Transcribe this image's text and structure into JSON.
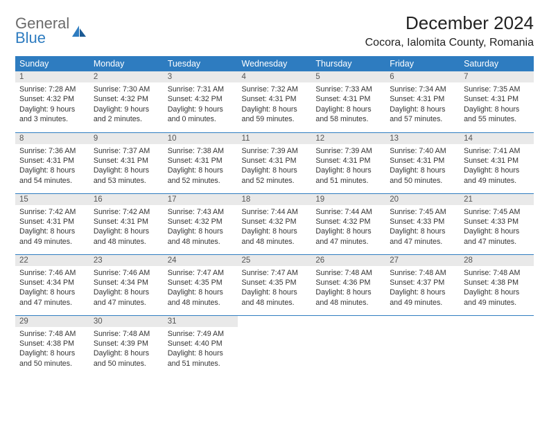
{
  "logo": {
    "word1": "General",
    "word2": "Blue"
  },
  "title": "December 2024",
  "location": "Cocora, Ialomita County, Romania",
  "colors": {
    "header_bg": "#2e7cc0",
    "header_text": "#ffffff",
    "daynum_bg": "#e9e9e9",
    "row_divider": "#2e7cc0",
    "logo_gray": "#6b6b6b",
    "logo_blue": "#2e7cc0"
  },
  "weekdays": [
    "Sunday",
    "Monday",
    "Tuesday",
    "Wednesday",
    "Thursday",
    "Friday",
    "Saturday"
  ],
  "weeks": [
    [
      {
        "day": "1",
        "sunrise": "Sunrise: 7:28 AM",
        "sunset": "Sunset: 4:32 PM",
        "daylight": "Daylight: 9 hours and 3 minutes."
      },
      {
        "day": "2",
        "sunrise": "Sunrise: 7:30 AM",
        "sunset": "Sunset: 4:32 PM",
        "daylight": "Daylight: 9 hours and 2 minutes."
      },
      {
        "day": "3",
        "sunrise": "Sunrise: 7:31 AM",
        "sunset": "Sunset: 4:32 PM",
        "daylight": "Daylight: 9 hours and 0 minutes."
      },
      {
        "day": "4",
        "sunrise": "Sunrise: 7:32 AM",
        "sunset": "Sunset: 4:31 PM",
        "daylight": "Daylight: 8 hours and 59 minutes."
      },
      {
        "day": "5",
        "sunrise": "Sunrise: 7:33 AM",
        "sunset": "Sunset: 4:31 PM",
        "daylight": "Daylight: 8 hours and 58 minutes."
      },
      {
        "day": "6",
        "sunrise": "Sunrise: 7:34 AM",
        "sunset": "Sunset: 4:31 PM",
        "daylight": "Daylight: 8 hours and 57 minutes."
      },
      {
        "day": "7",
        "sunrise": "Sunrise: 7:35 AM",
        "sunset": "Sunset: 4:31 PM",
        "daylight": "Daylight: 8 hours and 55 minutes."
      }
    ],
    [
      {
        "day": "8",
        "sunrise": "Sunrise: 7:36 AM",
        "sunset": "Sunset: 4:31 PM",
        "daylight": "Daylight: 8 hours and 54 minutes."
      },
      {
        "day": "9",
        "sunrise": "Sunrise: 7:37 AM",
        "sunset": "Sunset: 4:31 PM",
        "daylight": "Daylight: 8 hours and 53 minutes."
      },
      {
        "day": "10",
        "sunrise": "Sunrise: 7:38 AM",
        "sunset": "Sunset: 4:31 PM",
        "daylight": "Daylight: 8 hours and 52 minutes."
      },
      {
        "day": "11",
        "sunrise": "Sunrise: 7:39 AM",
        "sunset": "Sunset: 4:31 PM",
        "daylight": "Daylight: 8 hours and 52 minutes."
      },
      {
        "day": "12",
        "sunrise": "Sunrise: 7:39 AM",
        "sunset": "Sunset: 4:31 PM",
        "daylight": "Daylight: 8 hours and 51 minutes."
      },
      {
        "day": "13",
        "sunrise": "Sunrise: 7:40 AM",
        "sunset": "Sunset: 4:31 PM",
        "daylight": "Daylight: 8 hours and 50 minutes."
      },
      {
        "day": "14",
        "sunrise": "Sunrise: 7:41 AM",
        "sunset": "Sunset: 4:31 PM",
        "daylight": "Daylight: 8 hours and 49 minutes."
      }
    ],
    [
      {
        "day": "15",
        "sunrise": "Sunrise: 7:42 AM",
        "sunset": "Sunset: 4:31 PM",
        "daylight": "Daylight: 8 hours and 49 minutes."
      },
      {
        "day": "16",
        "sunrise": "Sunrise: 7:42 AM",
        "sunset": "Sunset: 4:31 PM",
        "daylight": "Daylight: 8 hours and 48 minutes."
      },
      {
        "day": "17",
        "sunrise": "Sunrise: 7:43 AM",
        "sunset": "Sunset: 4:32 PM",
        "daylight": "Daylight: 8 hours and 48 minutes."
      },
      {
        "day": "18",
        "sunrise": "Sunrise: 7:44 AM",
        "sunset": "Sunset: 4:32 PM",
        "daylight": "Daylight: 8 hours and 48 minutes."
      },
      {
        "day": "19",
        "sunrise": "Sunrise: 7:44 AM",
        "sunset": "Sunset: 4:32 PM",
        "daylight": "Daylight: 8 hours and 47 minutes."
      },
      {
        "day": "20",
        "sunrise": "Sunrise: 7:45 AM",
        "sunset": "Sunset: 4:33 PM",
        "daylight": "Daylight: 8 hours and 47 minutes."
      },
      {
        "day": "21",
        "sunrise": "Sunrise: 7:45 AM",
        "sunset": "Sunset: 4:33 PM",
        "daylight": "Daylight: 8 hours and 47 minutes."
      }
    ],
    [
      {
        "day": "22",
        "sunrise": "Sunrise: 7:46 AM",
        "sunset": "Sunset: 4:34 PM",
        "daylight": "Daylight: 8 hours and 47 minutes."
      },
      {
        "day": "23",
        "sunrise": "Sunrise: 7:46 AM",
        "sunset": "Sunset: 4:34 PM",
        "daylight": "Daylight: 8 hours and 47 minutes."
      },
      {
        "day": "24",
        "sunrise": "Sunrise: 7:47 AM",
        "sunset": "Sunset: 4:35 PM",
        "daylight": "Daylight: 8 hours and 48 minutes."
      },
      {
        "day": "25",
        "sunrise": "Sunrise: 7:47 AM",
        "sunset": "Sunset: 4:35 PM",
        "daylight": "Daylight: 8 hours and 48 minutes."
      },
      {
        "day": "26",
        "sunrise": "Sunrise: 7:48 AM",
        "sunset": "Sunset: 4:36 PM",
        "daylight": "Daylight: 8 hours and 48 minutes."
      },
      {
        "day": "27",
        "sunrise": "Sunrise: 7:48 AM",
        "sunset": "Sunset: 4:37 PM",
        "daylight": "Daylight: 8 hours and 49 minutes."
      },
      {
        "day": "28",
        "sunrise": "Sunrise: 7:48 AM",
        "sunset": "Sunset: 4:38 PM",
        "daylight": "Daylight: 8 hours and 49 minutes."
      }
    ],
    [
      {
        "day": "29",
        "sunrise": "Sunrise: 7:48 AM",
        "sunset": "Sunset: 4:38 PM",
        "daylight": "Daylight: 8 hours and 50 minutes."
      },
      {
        "day": "30",
        "sunrise": "Sunrise: 7:48 AM",
        "sunset": "Sunset: 4:39 PM",
        "daylight": "Daylight: 8 hours and 50 minutes."
      },
      {
        "day": "31",
        "sunrise": "Sunrise: 7:49 AM",
        "sunset": "Sunset: 4:40 PM",
        "daylight": "Daylight: 8 hours and 51 minutes."
      },
      null,
      null,
      null,
      null
    ]
  ]
}
